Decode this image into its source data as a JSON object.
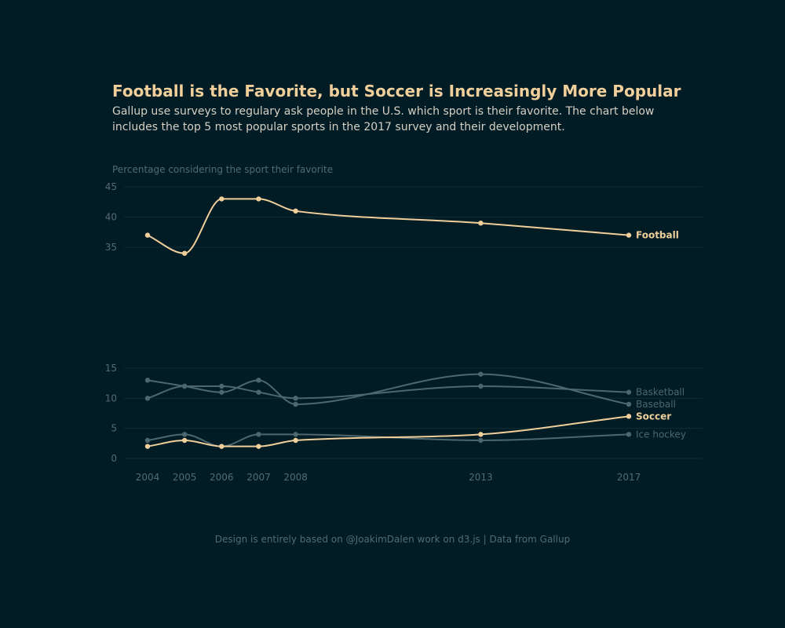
{
  "chart_data": {
    "type": "line",
    "title": "Football is the Favorite, but Soccer is Increasingly More Popular",
    "subtitle": "Gallup use surveys to regulary ask people in the U.S. which sport is their favorite. The chart below includes the top 5 most popular sports in the 2017 survey and their development.",
    "ylabel": "Percentage considering the sport their favorite",
    "x": [
      2004,
      2005,
      2006,
      2007,
      2008,
      2013,
      2017
    ],
    "panels": [
      {
        "ylim": [
          35,
          45
        ],
        "yticks": [
          35,
          40,
          45
        ]
      },
      {
        "ylim": [
          0,
          15
        ],
        "yticks": [
          0,
          5,
          10,
          15
        ]
      }
    ],
    "series": [
      {
        "name": "Football",
        "panel": 0,
        "highlight": true,
        "values": [
          37,
          34,
          43,
          43,
          41,
          39,
          37
        ]
      },
      {
        "name": "Basketball",
        "panel": 1,
        "highlight": false,
        "values": [
          10,
          12,
          12,
          11,
          10,
          12,
          11
        ]
      },
      {
        "name": "Baseball",
        "panel": 1,
        "highlight": false,
        "values": [
          13,
          12,
          11,
          13,
          9,
          14,
          9
        ]
      },
      {
        "name": "Soccer",
        "panel": 1,
        "highlight": true,
        "values": [
          2,
          3,
          2,
          2,
          3,
          4,
          7
        ]
      },
      {
        "name": "Ice hockey",
        "panel": 1,
        "highlight": false,
        "values": [
          3,
          4,
          2,
          4,
          4,
          3,
          4
        ]
      }
    ],
    "grid": true,
    "colors": {
      "highlight": "#f0cf9b",
      "muted": "#4c6770",
      "background": "#011c25"
    }
  },
  "footer": "Design is entirely based on @JoakimDalen work on d3.js | Data from Gallup"
}
